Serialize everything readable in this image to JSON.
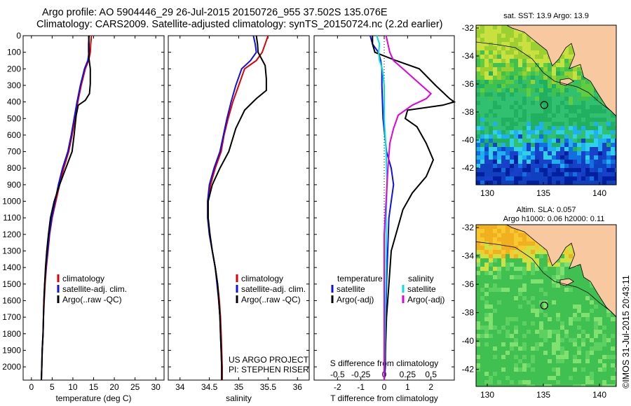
{
  "header": {
    "line1": "Argo profile: AO 5904446_29 26-Jul-2015 20150726_955 37.502S 135.076E",
    "line2": "Climatology: CARS2009. Satellite-adjusted climatology: synTS_20150724.nc (2.2d earlier)"
  },
  "colors": {
    "climatology": "#e00000",
    "satellite": "#1010e0",
    "argo": "#000000",
    "satellite_s": "#00e0e0",
    "argo_s": "#e000e0",
    "land": "#f8c8a0"
  },
  "chart_data": [
    {
      "type": "line",
      "xlabel": "temperature (deg C)",
      "ylabel": "",
      "xlim": [
        -2,
        32
      ],
      "ylim": [
        2080,
        0
      ],
      "xticks": [
        "0",
        "5",
        "10",
        "15",
        "20",
        "25",
        "30"
      ],
      "xtick_values": [
        0,
        5,
        10,
        15,
        20,
        25,
        30
      ],
      "yticks": [
        "0",
        "100",
        "200",
        "300",
        "400",
        "500",
        "600",
        "700",
        "800",
        "900",
        "1000",
        "1100",
        "1200",
        "1300",
        "1400",
        "1500",
        "1600",
        "1700",
        "1800",
        "1900",
        "2000"
      ],
      "legend": [
        "climatology",
        "satellite-adj. clim.",
        "Argo(..raw -QC)"
      ],
      "series": [
        {
          "name": "climatology",
          "color": "#e00000",
          "points": [
            [
              14.5,
              0
            ],
            [
              14.3,
              50
            ],
            [
              14.2,
              100
            ],
            [
              13.8,
              150
            ],
            [
              13.0,
              200
            ],
            [
              12.0,
              300
            ],
            [
              11.2,
              400
            ],
            [
              10.5,
              500
            ],
            [
              9.8,
              600
            ],
            [
              9.0,
              700
            ],
            [
              7.8,
              800
            ],
            [
              6.8,
              900
            ],
            [
              5.9,
              1000
            ],
            [
              5.0,
              1100
            ],
            [
              4.4,
              1200
            ],
            [
              4.0,
              1300
            ],
            [
              3.6,
              1400
            ],
            [
              3.3,
              1500
            ],
            [
              3.1,
              1600
            ],
            [
              2.9,
              1700
            ],
            [
              2.8,
              1800
            ],
            [
              2.6,
              1900
            ],
            [
              2.5,
              2000
            ],
            [
              2.4,
              2080
            ]
          ]
        },
        {
          "name": "satellite-adj. clim.",
          "color": "#1010e0",
          "points": [
            [
              13.8,
              0
            ],
            [
              13.9,
              50
            ],
            [
              13.9,
              100
            ],
            [
              13.6,
              150
            ],
            [
              12.8,
              200
            ],
            [
              11.8,
              300
            ],
            [
              11.0,
              400
            ],
            [
              10.3,
              500
            ],
            [
              9.6,
              600
            ],
            [
              8.8,
              700
            ],
            [
              7.5,
              800
            ],
            [
              6.5,
              900
            ],
            [
              5.7,
              1000
            ],
            [
              4.9,
              1100
            ],
            [
              4.3,
              1200
            ],
            [
              3.9,
              1300
            ],
            [
              3.5,
              1400
            ],
            [
              3.2,
              1500
            ],
            [
              3.0,
              1600
            ],
            [
              2.9,
              1700
            ],
            [
              2.8,
              1800
            ],
            [
              2.6,
              1900
            ],
            [
              2.5,
              2000
            ],
            [
              2.4,
              2080
            ]
          ]
        },
        {
          "name": "Argo(..raw -QC)",
          "color": "#000000",
          "points": [
            [
              13.9,
              0
            ],
            [
              13.8,
              50
            ],
            [
              13.8,
              100
            ],
            [
              13.9,
              140
            ],
            [
              14.2,
              200
            ],
            [
              14.2,
              290
            ],
            [
              14.0,
              350
            ],
            [
              13.0,
              390
            ],
            [
              11.3,
              420
            ],
            [
              10.8,
              480
            ],
            [
              10.3,
              600
            ],
            [
              9.8,
              700
            ],
            [
              8.3,
              800
            ],
            [
              6.8,
              900
            ],
            [
              5.5,
              1000
            ],
            [
              4.6,
              1100
            ],
            [
              4.1,
              1200
            ],
            [
              3.7,
              1300
            ],
            [
              3.4,
              1400
            ],
            [
              3.2,
              1500
            ],
            [
              3.0,
              1600
            ],
            [
              2.9,
              1700
            ],
            [
              2.8,
              1800
            ],
            [
              2.6,
              1900
            ],
            [
              2.5,
              2000
            ],
            [
              2.4,
              2080
            ]
          ]
        }
      ]
    },
    {
      "type": "line",
      "xlabel": "salinity",
      "xlim": [
        33.8,
        36.2
      ],
      "ylim": [
        2080,
        0
      ],
      "xticks": [
        "34",
        "34.5",
        "35",
        "35.5",
        "36"
      ],
      "xtick_values": [
        34,
        34.5,
        35,
        35.5,
        36
      ],
      "legend": [
        "climatology",
        "satellite-adj. clim.",
        "Argo(..raw -QC)"
      ],
      "annotation": [
        "US ARGO PROJECT",
        "PI: STEPHEN RISER"
      ],
      "series": [
        {
          "name": "climatology",
          "color": "#e00000",
          "points": [
            [
              35.5,
              0
            ],
            [
              35.45,
              50
            ],
            [
              35.4,
              100
            ],
            [
              35.3,
              150
            ],
            [
              35.1,
              200
            ],
            [
              35.0,
              300
            ],
            [
              34.9,
              400
            ],
            [
              34.82,
              500
            ],
            [
              34.75,
              600
            ],
            [
              34.7,
              700
            ],
            [
              34.6,
              800
            ],
            [
              34.52,
              900
            ],
            [
              34.48,
              1000
            ],
            [
              34.48,
              1100
            ],
            [
              34.5,
              1200
            ],
            [
              34.55,
              1300
            ],
            [
              34.6,
              1400
            ],
            [
              34.64,
              1500
            ],
            [
              34.67,
              1600
            ],
            [
              34.69,
              1700
            ],
            [
              34.7,
              1800
            ],
            [
              34.71,
              1900
            ],
            [
              34.72,
              2000
            ],
            [
              34.72,
              2080
            ]
          ]
        },
        {
          "name": "satellite-adj. clim.",
          "color": "#1010e0",
          "points": [
            [
              35.25,
              0
            ],
            [
              35.28,
              50
            ],
            [
              35.3,
              100
            ],
            [
              35.2,
              150
            ],
            [
              35.05,
              200
            ],
            [
              34.95,
              300
            ],
            [
              34.87,
              400
            ],
            [
              34.8,
              500
            ],
            [
              34.74,
              600
            ],
            [
              34.68,
              700
            ],
            [
              34.58,
              800
            ],
            [
              34.5,
              900
            ],
            [
              34.47,
              1000
            ],
            [
              34.47,
              1100
            ],
            [
              34.5,
              1200
            ],
            [
              34.55,
              1300
            ],
            [
              34.6,
              1400
            ],
            [
              34.63,
              1500
            ],
            [
              34.66,
              1600
            ],
            [
              34.68,
              1700
            ],
            [
              34.69,
              1800
            ],
            [
              34.7,
              1900
            ],
            [
              34.71,
              2000
            ],
            [
              34.71,
              2080
            ]
          ]
        },
        {
          "name": "Argo(..raw -QC)",
          "color": "#000000",
          "points": [
            [
              35.3,
              0
            ],
            [
              35.32,
              50
            ],
            [
              35.33,
              100
            ],
            [
              35.45,
              180
            ],
            [
              35.47,
              260
            ],
            [
              35.47,
              330
            ],
            [
              35.3,
              380
            ],
            [
              35.1,
              450
            ],
            [
              34.95,
              560
            ],
            [
              34.83,
              700
            ],
            [
              34.68,
              800
            ],
            [
              34.55,
              900
            ],
            [
              34.48,
              1000
            ],
            [
              34.48,
              1100
            ],
            [
              34.51,
              1200
            ],
            [
              34.55,
              1300
            ],
            [
              34.6,
              1400
            ],
            [
              34.64,
              1500
            ],
            [
              34.66,
              1600
            ],
            [
              34.68,
              1700
            ],
            [
              34.69,
              1800
            ],
            [
              34.7,
              1900
            ],
            [
              34.71,
              2000
            ],
            [
              34.71,
              2080
            ]
          ]
        }
      ]
    },
    {
      "type": "line",
      "xlabel": "T difference from climatology",
      "xlabel_top": "S difference from climatology",
      "xlim": [
        -3,
        3
      ],
      "s_xlim": [
        -0.75,
        0.75
      ],
      "ylim": [
        2080,
        0
      ],
      "xticks": [
        "-2",
        "-1",
        "0",
        "1",
        "2"
      ],
      "xtick_values": [
        -2,
        -1,
        0,
        1,
        2
      ],
      "s_xticks": [
        "-0.5",
        "-0.25",
        "0",
        "0.25",
        "0.5"
      ],
      "s_xtick_values": [
        -0.5,
        -0.25,
        0,
        0.25,
        0.5
      ],
      "legend_t": {
        "title": "temperature",
        "items": [
          "satellite",
          "Argo(-adj)"
        ]
      },
      "legend_s": {
        "title": "salinity",
        "items": [
          "satellite",
          "Argo(-adj)"
        ]
      },
      "series": [
        {
          "name": "T satellite",
          "color": "#1010e0",
          "points": [
            [
              -0.6,
              0
            ],
            [
              -0.5,
              50
            ],
            [
              -0.25,
              100
            ],
            [
              -0.15,
              150
            ],
            [
              -0.1,
              200
            ],
            [
              -0.1,
              300
            ],
            [
              -0.05,
              500
            ],
            [
              0.1,
              700
            ],
            [
              0.3,
              800
            ],
            [
              0.4,
              900
            ],
            [
              0.3,
              1000
            ],
            [
              0.2,
              1100
            ],
            [
              0.15,
              1300
            ],
            [
              0.1,
              1500
            ],
            [
              0.05,
              1800
            ],
            [
              0.05,
              2000
            ],
            [
              0.0,
              2080
            ]
          ]
        },
        {
          "name": "T Argo(-adj)",
          "color": "#000000",
          "points": [
            [
              -0.5,
              0
            ],
            [
              -0.5,
              50
            ],
            [
              -0.4,
              100
            ],
            [
              0.5,
              150
            ],
            [
              1.5,
              200
            ],
            [
              2.2,
              300
            ],
            [
              2.8,
              380
            ],
            [
              3.0,
              400
            ],
            [
              2.5,
              420
            ],
            [
              1.0,
              450
            ],
            [
              0.9,
              500
            ],
            [
              1.4,
              550
            ],
            [
              1.8,
              650
            ],
            [
              2.1,
              750
            ],
            [
              1.8,
              850
            ],
            [
              1.2,
              950
            ],
            [
              0.8,
              1050
            ],
            [
              0.5,
              1200
            ],
            [
              0.3,
              1300
            ],
            [
              0.2,
              1500
            ],
            [
              0.1,
              1700
            ],
            [
              0.05,
              1900
            ],
            [
              0.0,
              2080
            ]
          ]
        },
        {
          "name": "S satellite",
          "color": "#00e0e0",
          "points": [
            [
              -0.08,
              0
            ],
            [
              -0.05,
              50
            ],
            [
              -0.06,
              100
            ],
            [
              -0.05,
              150
            ],
            [
              -0.02,
              200
            ],
            [
              0.0,
              300
            ],
            [
              0.0,
              500
            ],
            [
              0.02,
              700
            ],
            [
              0.03,
              900
            ],
            [
              0.02,
              1100
            ],
            [
              0.02,
              1400
            ],
            [
              0.0,
              2080
            ]
          ]
        },
        {
          "name": "S Argo(-adj)",
          "color": "#e000e0",
          "points": [
            [
              0.02,
              0
            ],
            [
              0.04,
              50
            ],
            [
              0.06,
              100
            ],
            [
              0.1,
              150
            ],
            [
              0.2,
              200
            ],
            [
              0.4,
              300
            ],
            [
              0.5,
              350
            ],
            [
              0.45,
              380
            ],
            [
              0.3,
              420
            ],
            [
              0.15,
              480
            ],
            [
              0.1,
              560
            ],
            [
              0.06,
              650
            ],
            [
              0.04,
              800
            ],
            [
              0.02,
              1000
            ],
            [
              0.0,
              1200
            ],
            [
              0.0,
              2080
            ]
          ]
        }
      ]
    },
    {
      "type": "heatmap",
      "title": "sat. SST: 13.9 Argo: 13.9",
      "xlim": [
        129,
        141.5
      ],
      "ylim": [
        -43.2,
        -31.8
      ],
      "xticks": [
        "130",
        "135",
        "140"
      ],
      "xtick_values": [
        130,
        135,
        140
      ],
      "yticks": [
        "-32",
        "-34",
        "-36",
        "-38",
        "-40",
        "-42"
      ],
      "ytick_values": [
        -32,
        -34,
        -36,
        -38,
        -40,
        -42
      ],
      "marker": [
        135.08,
        -37.5
      ]
    },
    {
      "type": "heatmap",
      "title": "Altim. SLA: 0.057",
      "subtitle": "Argo h1000: 0.06 h2000: 0.11",
      "xlim": [
        129,
        141.5
      ],
      "ylim": [
        -43.2,
        -31.8
      ],
      "xticks": [
        "130",
        "135",
        "140"
      ],
      "xtick_values": [
        130,
        135,
        140
      ],
      "yticks": [
        "-32",
        "-34",
        "-36",
        "-38",
        "-40",
        "-42"
      ],
      "ytick_values": [
        -32,
        -34,
        -36,
        -38,
        -40,
        -42
      ],
      "marker": [
        135.08,
        -37.5
      ]
    }
  ],
  "footer": {
    "stamp": "©IMOS 31-Jul-2015 20:43:11"
  }
}
